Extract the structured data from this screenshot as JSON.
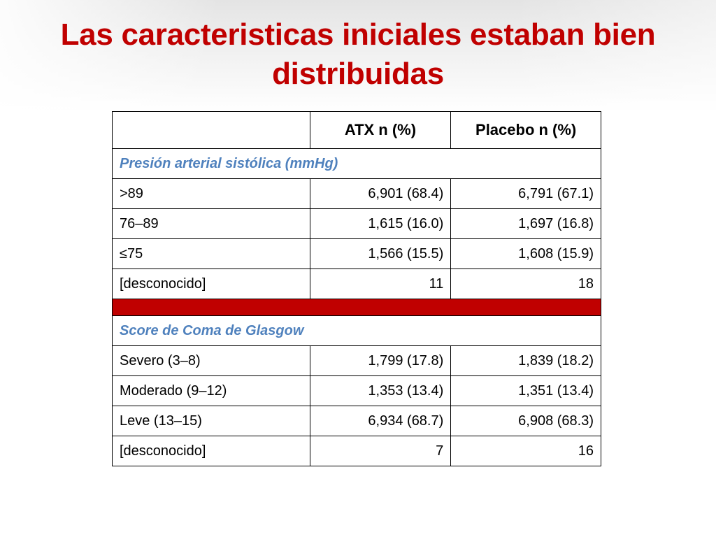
{
  "slide": {
    "title": "Las caracteristicas iniciales estaban bien distribuidas"
  },
  "table": {
    "headers": [
      "",
      "ATX n (%)",
      "Placebo n (%)"
    ],
    "sections": [
      {
        "title": "Presión arterial sistólica (mmHg)",
        "rows": [
          {
            "label": ">89",
            "atx": "6,901 (68.4)",
            "placebo": "6,791 (67.1)"
          },
          {
            "label": "76–89",
            "atx": "1,615 (16.0)",
            "placebo": "1,697 (16.8)"
          },
          {
            "label": "≤75",
            "atx": "1,566 (15.5)",
            "placebo": "1,608 (15.9)"
          },
          {
            "label": "[desconocido]",
            "atx": "11",
            "placebo": "18"
          }
        ]
      },
      {
        "title": "Score de Coma de Glasgow",
        "rows": [
          {
            "label": "Severo (3–8)",
            "atx": "1,799 (17.8)",
            "placebo": "1,839 (18.2)"
          },
          {
            "label": "Moderado (9–12)",
            "atx": "1,353 (13.4)",
            "placebo": "1,351 (13.4)"
          },
          {
            "label": "Leve (13–15)",
            "atx": "6,934 (68.7)",
            "placebo": "6,908 (68.3)"
          },
          {
            "label": "[desconocido]",
            "atx": "7",
            "placebo": "16"
          }
        ]
      }
    ]
  },
  "colors": {
    "title": "#c00000",
    "section_heading": "#4f81bd",
    "separator": "#c00000"
  }
}
